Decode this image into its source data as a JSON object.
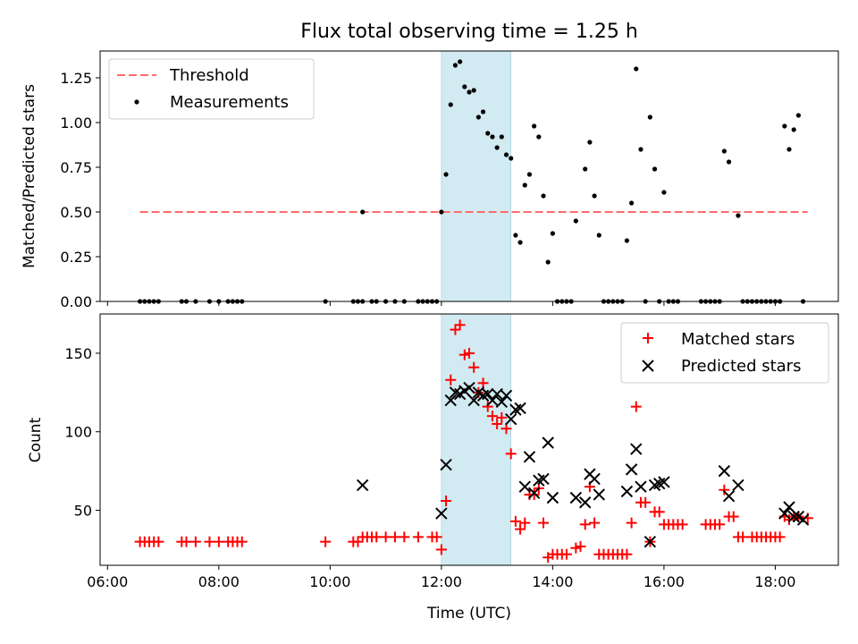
{
  "chart_data": [
    {
      "type": "scatter",
      "title": "Flux total observing time = 1.25 h",
      "xlabel": "",
      "ylabel": "Matched/Predicted stars",
      "xlim": [
        "05:52",
        "19:08"
      ],
      "ylim": [
        0,
        1.4
      ],
      "yticks": [
        "0.00",
        "0.25",
        "0.50",
        "0.75",
        "1.00",
        "1.25"
      ],
      "highlight_span": {
        "start": "12:00",
        "end": "13:15",
        "color": "#add8e6"
      },
      "legend": {
        "placement": "top-left",
        "entries": [
          "Threshold",
          "Measurements"
        ]
      },
      "series": [
        {
          "name": "Threshold",
          "style": "dashed-line",
          "color": "#ff6b6b",
          "points": [
            [
              "06:35",
              0.5
            ],
            [
              "18:35",
              0.5
            ]
          ]
        },
        {
          "name": "Measurements",
          "style": "dot",
          "color": "#000000",
          "points": [
            [
              "06:35",
              0
            ],
            [
              "06:40",
              0
            ],
            [
              "06:45",
              0
            ],
            [
              "06:50",
              0
            ],
            [
              "06:55",
              0
            ],
            [
              "07:20",
              0
            ],
            [
              "07:25",
              0
            ],
            [
              "07:35",
              0
            ],
            [
              "07:50",
              0
            ],
            [
              "08:00",
              0
            ],
            [
              "08:10",
              0
            ],
            [
              "08:15",
              0
            ],
            [
              "08:20",
              0
            ],
            [
              "08:25",
              0
            ],
            [
              "09:55",
              0
            ],
            [
              "10:25",
              0
            ],
            [
              "10:30",
              0
            ],
            [
              "10:35",
              0
            ],
            [
              "10:35",
              0.5
            ],
            [
              "10:45",
              0
            ],
            [
              "10:50",
              0
            ],
            [
              "11:00",
              0
            ],
            [
              "11:10",
              0
            ],
            [
              "11:20",
              0
            ],
            [
              "11:35",
              0
            ],
            [
              "11:40",
              0
            ],
            [
              "11:45",
              0
            ],
            [
              "11:50",
              0
            ],
            [
              "11:55",
              0
            ],
            [
              "12:00",
              0.5
            ],
            [
              "12:05",
              0.71
            ],
            [
              "12:10",
              1.1
            ],
            [
              "12:15",
              1.32
            ],
            [
              "12:20",
              1.34
            ],
            [
              "12:25",
              1.2
            ],
            [
              "12:30",
              1.17
            ],
            [
              "12:35",
              1.18
            ],
            [
              "12:40",
              1.03
            ],
            [
              "12:45",
              1.06
            ],
            [
              "12:50",
              0.94
            ],
            [
              "12:55",
              0.92
            ],
            [
              "13:00",
              0.86
            ],
            [
              "13:05",
              0.92
            ],
            [
              "13:10",
              0.82
            ],
            [
              "13:15",
              0.8
            ],
            [
              "13:20",
              0.37
            ],
            [
              "13:25",
              0.33
            ],
            [
              "13:30",
              0.65
            ],
            [
              "13:35",
              0.71
            ],
            [
              "13:40",
              0.98
            ],
            [
              "13:45",
              0.92
            ],
            [
              "13:50",
              0.59
            ],
            [
              "13:55",
              0.22
            ],
            [
              "14:00",
              0.38
            ],
            [
              "14:05",
              0
            ],
            [
              "14:10",
              0
            ],
            [
              "14:15",
              0
            ],
            [
              "14:20",
              0
            ],
            [
              "14:25",
              0.45
            ],
            [
              "14:35",
              0.74
            ],
            [
              "14:40",
              0.89
            ],
            [
              "14:45",
              0.59
            ],
            [
              "14:50",
              0.37
            ],
            [
              "14:55",
              0
            ],
            [
              "15:00",
              0
            ],
            [
              "15:05",
              0
            ],
            [
              "15:10",
              0
            ],
            [
              "15:15",
              0
            ],
            [
              "15:20",
              0.34
            ],
            [
              "15:25",
              0.55
            ],
            [
              "15:30",
              1.3
            ],
            [
              "15:35",
              0.85
            ],
            [
              "15:40",
              0
            ],
            [
              "15:45",
              1.03
            ],
            [
              "15:50",
              0.74
            ],
            [
              "15:55",
              0
            ],
            [
              "16:00",
              0.61
            ],
            [
              "16:05",
              0
            ],
            [
              "16:10",
              0
            ],
            [
              "16:15",
              0
            ],
            [
              "16:40",
              0
            ],
            [
              "16:45",
              0
            ],
            [
              "16:50",
              0
            ],
            [
              "16:55",
              0
            ],
            [
              "17:00",
              0
            ],
            [
              "17:05",
              0.84
            ],
            [
              "17:10",
              0.78
            ],
            [
              "17:20",
              0.48
            ],
            [
              "17:25",
              0
            ],
            [
              "17:30",
              0
            ],
            [
              "17:35",
              0
            ],
            [
              "17:40",
              0
            ],
            [
              "17:45",
              0
            ],
            [
              "17:50",
              0
            ],
            [
              "17:55",
              0
            ],
            [
              "18:00",
              0
            ],
            [
              "18:05",
              0
            ],
            [
              "18:10",
              0.98
            ],
            [
              "18:15",
              0.85
            ],
            [
              "18:20",
              0.96
            ],
            [
              "18:25",
              1.04
            ],
            [
              "18:30",
              0
            ]
          ]
        }
      ]
    },
    {
      "type": "scatter",
      "title": "",
      "xlabel": "Time (UTC)",
      "ylabel": "Count",
      "xlim": [
        "05:52",
        "19:08"
      ],
      "ylim": [
        15,
        175
      ],
      "xticks": [
        "06:00",
        "08:00",
        "10:00",
        "12:00",
        "14:00",
        "16:00",
        "18:00"
      ],
      "yticks": [
        "50",
        "100",
        "150"
      ],
      "highlight_span": {
        "start": "12:00",
        "end": "13:15",
        "color": "#add8e6"
      },
      "legend": {
        "placement": "top-right",
        "entries": [
          "Matched stars",
          "Predicted stars"
        ]
      },
      "series": [
        {
          "name": "Matched stars",
          "marker": "plus",
          "color": "#ff0000",
          "points": [
            [
              "06:35",
              30
            ],
            [
              "06:40",
              30
            ],
            [
              "06:45",
              30
            ],
            [
              "06:50",
              30
            ],
            [
              "06:55",
              30
            ],
            [
              "07:20",
              30
            ],
            [
              "07:25",
              30
            ],
            [
              "07:35",
              30
            ],
            [
              "07:50",
              30
            ],
            [
              "08:00",
              30
            ],
            [
              "08:10",
              30
            ],
            [
              "08:15",
              30
            ],
            [
              "08:20",
              30
            ],
            [
              "08:25",
              30
            ],
            [
              "09:55",
              30
            ],
            [
              "10:25",
              30
            ],
            [
              "10:30",
              30
            ],
            [
              "10:35",
              33
            ],
            [
              "10:40",
              33
            ],
            [
              "10:45",
              33
            ],
            [
              "10:50",
              33
            ],
            [
              "11:00",
              33
            ],
            [
              "11:10",
              33
            ],
            [
              "11:20",
              33
            ],
            [
              "11:35",
              33
            ],
            [
              "11:50",
              33
            ],
            [
              "11:55",
              33
            ],
            [
              "12:00",
              25
            ],
            [
              "12:05",
              56
            ],
            [
              "12:10",
              133
            ],
            [
              "12:15",
              165
            ],
            [
              "12:20",
              168
            ],
            [
              "12:25",
              149
            ],
            [
              "12:30",
              150
            ],
            [
              "12:35",
              141
            ],
            [
              "12:40",
              125
            ],
            [
              "12:45",
              131
            ],
            [
              "12:50",
              116
            ],
            [
              "12:55",
              110
            ],
            [
              "13:00",
              105
            ],
            [
              "13:05",
              109
            ],
            [
              "13:10",
              102
            ],
            [
              "13:15",
              86
            ],
            [
              "13:20",
              43
            ],
            [
              "13:25",
              38
            ],
            [
              "13:30",
              42
            ],
            [
              "13:35",
              60
            ],
            [
              "13:40",
              60
            ],
            [
              "13:45",
              64
            ],
            [
              "13:50",
              42
            ],
            [
              "13:55",
              20
            ],
            [
              "14:00",
              22
            ],
            [
              "14:05",
              22
            ],
            [
              "14:10",
              22
            ],
            [
              "14:15",
              22
            ],
            [
              "14:25",
              26
            ],
            [
              "14:30",
              27
            ],
            [
              "14:35",
              41
            ],
            [
              "14:40",
              65
            ],
            [
              "14:45",
              42
            ],
            [
              "14:50",
              22
            ],
            [
              "14:55",
              22
            ],
            [
              "15:00",
              22
            ],
            [
              "15:05",
              22
            ],
            [
              "15:10",
              22
            ],
            [
              "15:15",
              22
            ],
            [
              "15:20",
              22
            ],
            [
              "15:25",
              42
            ],
            [
              "15:30",
              116
            ],
            [
              "15:35",
              55
            ],
            [
              "15:40",
              55
            ],
            [
              "15:45",
              30
            ],
            [
              "15:50",
              49
            ],
            [
              "15:55",
              49
            ],
            [
              "16:00",
              41
            ],
            [
              "16:05",
              41
            ],
            [
              "16:10",
              41
            ],
            [
              "16:15",
              41
            ],
            [
              "16:20",
              41
            ],
            [
              "16:45",
              41
            ],
            [
              "16:50",
              41
            ],
            [
              "16:55",
              41
            ],
            [
              "17:00",
              41
            ],
            [
              "17:05",
              63
            ],
            [
              "17:10",
              46
            ],
            [
              "17:15",
              46
            ],
            [
              "17:20",
              33
            ],
            [
              "17:25",
              33
            ],
            [
              "17:35",
              33
            ],
            [
              "17:40",
              33
            ],
            [
              "17:45",
              33
            ],
            [
              "17:50",
              33
            ],
            [
              "17:55",
              33
            ],
            [
              "18:00",
              33
            ],
            [
              "18:05",
              33
            ],
            [
              "18:10",
              46
            ],
            [
              "18:15",
              44
            ],
            [
              "18:20",
              46
            ],
            [
              "18:25",
              46
            ],
            [
              "18:35",
              45
            ]
          ]
        },
        {
          "name": "Predicted stars",
          "marker": "x",
          "color": "#000000",
          "points": [
            [
              "10:35",
              66
            ],
            [
              "12:00",
              48
            ],
            [
              "12:05",
              79
            ],
            [
              "12:10",
              120
            ],
            [
              "12:15",
              125
            ],
            [
              "12:20",
              124
            ],
            [
              "12:25",
              126
            ],
            [
              "12:30",
              128
            ],
            [
              "12:35",
              120
            ],
            [
              "12:40",
              125
            ],
            [
              "12:45",
              123
            ],
            [
              "12:50",
              124
            ],
            [
              "12:55",
              120
            ],
            [
              "13:00",
              124
            ],
            [
              "13:05",
              119
            ],
            [
              "13:10",
              123
            ],
            [
              "13:15",
              108
            ],
            [
              "13:20",
              114
            ],
            [
              "13:25",
              115
            ],
            [
              "13:30",
              65
            ],
            [
              "13:35",
              84
            ],
            [
              "13:40",
              61
            ],
            [
              "13:45",
              69
            ],
            [
              "13:50",
              70
            ],
            [
              "13:55",
              93
            ],
            [
              "14:00",
              58
            ],
            [
              "14:25",
              58
            ],
            [
              "14:35",
              55
            ],
            [
              "14:40",
              73
            ],
            [
              "14:45",
              70
            ],
            [
              "14:50",
              60
            ],
            [
              "15:20",
              62
            ],
            [
              "15:25",
              76
            ],
            [
              "15:30",
              89
            ],
            [
              "15:35",
              65
            ],
            [
              "15:45",
              30
            ],
            [
              "15:50",
              66
            ],
            [
              "15:55",
              67
            ],
            [
              "16:00",
              68
            ],
            [
              "17:05",
              75
            ],
            [
              "17:10",
              59
            ],
            [
              "17:20",
              66
            ],
            [
              "18:10",
              48
            ],
            [
              "18:15",
              52
            ],
            [
              "18:20",
              46
            ],
            [
              "18:25",
              46
            ],
            [
              "18:30",
              44
            ]
          ]
        }
      ]
    }
  ]
}
